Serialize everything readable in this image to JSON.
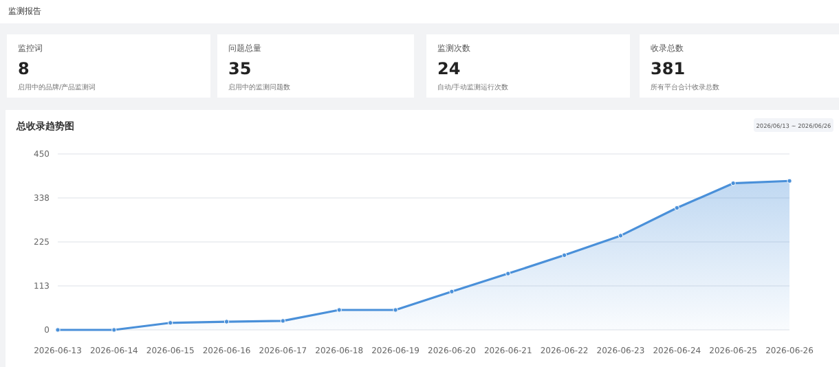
{
  "chart_data": [
    {
      "type": "other",
      "title": "监测报告"
    },
    {
      "type": "other",
      "title": "监控词",
      "annotations": [
        "8",
        "启用中的品牌/产品监测词"
      ]
    },
    {
      "type": "other",
      "title": "问题总量",
      "annotations": [
        "35",
        "启用中的监测问题数"
      ]
    },
    {
      "type": "other",
      "title": "监测次数",
      "annotations": [
        "24",
        "自动/手动监测运行次数"
      ]
    },
    {
      "type": "other",
      "title": "收录总数",
      "annotations": [
        "381",
        "所有平台合计收录总数"
      ]
    },
    {
      "type": "area",
      "title": "总收录趋势图",
      "annotations": [
        "2026/06/13 ~ 2026/06/26"
      ],
      "categories": [
        "2026-06-13",
        "2026-06-14",
        "2026-06-15",
        "2026-06-16",
        "2026-06-17",
        "2026-06-18",
        "2026-06-19",
        "2026-06-20",
        "2026-06-21",
        "2026-06-22",
        "2026-06-23",
        "2026-06-24",
        "2026-06-25",
        "2026-06-26"
      ],
      "series": [
        {
          "color": "#4a90d9",
          "values": [
            0,
            0,
            18,
            21,
            23,
            51,
            51,
            98,
            144,
            191,
            241,
            312,
            375,
            381
          ]
        }
      ],
      "ylim": [
        0,
        450
      ],
      "yticks": [
        0,
        {
          "value": 112.5,
          "label": "113"
        },
        225,
        {
          "value": 337.5,
          "label": "338"
        },
        450
      ],
      "grid": "y",
      "marker": "circle"
    }
  ]
}
